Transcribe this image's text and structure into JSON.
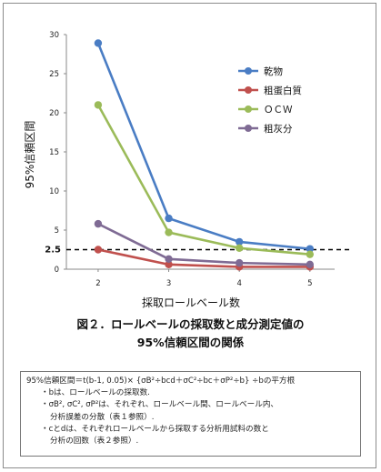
{
  "chart_data": {
    "type": "line",
    "xlabel": "採取ロールベール数",
    "ylabel": "95%信頼区間",
    "x": [
      2,
      3,
      4,
      5
    ],
    "xlim": [
      1.55,
      5.35
    ],
    "ylim": [
      0,
      30
    ],
    "yticks": [
      0,
      5,
      10,
      15,
      20,
      25,
      30
    ],
    "grid": false,
    "legend_position": "top-right",
    "reference_line": {
      "y": 2.5,
      "label": "2.5",
      "style": "dashed",
      "color": "#000000"
    },
    "series": [
      {
        "name": "乾物",
        "values": [
          28.9,
          6.5,
          3.5,
          2.6
        ],
        "color": "#4a7dc4"
      },
      {
        "name": "粗蛋白質",
        "values": [
          2.5,
          0.6,
          0.3,
          0.3
        ],
        "color": "#c0504d"
      },
      {
        "name": "ＯＣＷ",
        "values": [
          21.0,
          4.7,
          2.7,
          1.9
        ],
        "color": "#9bbb59"
      },
      {
        "name": "粗灰分",
        "values": [
          5.8,
          1.3,
          0.8,
          0.6
        ],
        "color": "#7f6b94"
      }
    ]
  },
  "caption": {
    "line1": "図２．ロールベールの採取数と成分測定値の",
    "line2": "95%信頼区間の関係"
  },
  "note": {
    "formula": "95%信頼区間＝t(b-1, 0.05)× {σB²÷bcd＋σC²÷bc＋σP²÷b} ÷bの平方根",
    "item1": "・bは、ロールベールの採取数.",
    "item2a": "・σB², σC², σP²は、それぞれ、ロールベール間、ロールベール内、",
    "item2b": "分析誤差の分散（表１参照）.",
    "item3a": "・cとdは、それぞれロールベールから採取する分析用試料の数と",
    "item3b": "分析の回数（表２参照）."
  }
}
